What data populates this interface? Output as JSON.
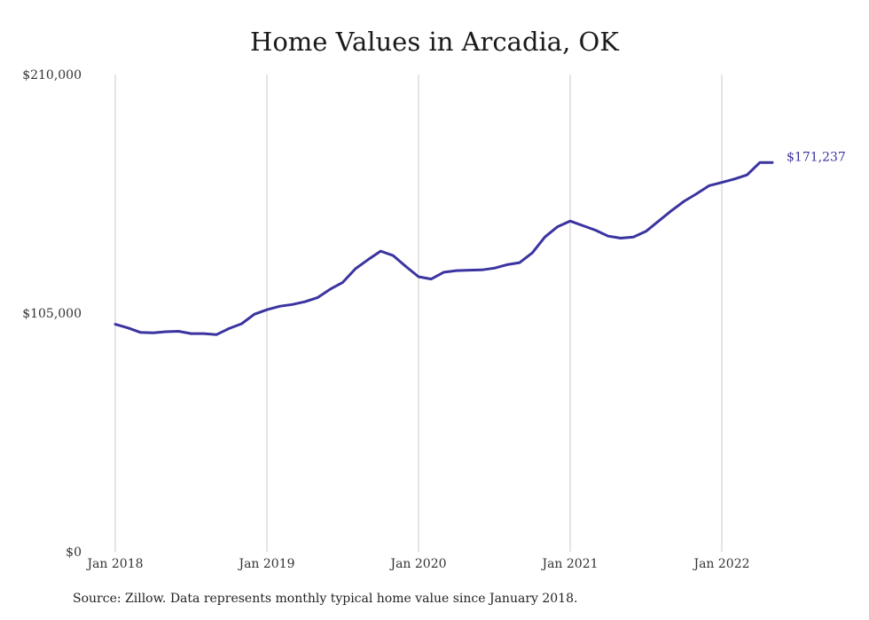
{
  "chart_data": {
    "type": "line",
    "title": "Home Values in Arcadia, OK",
    "xlabel": "",
    "ylabel": "",
    "ylim": [
      0,
      210000
    ],
    "yticks": [
      0,
      105000,
      210000
    ],
    "ytick_labels": [
      "$0",
      "$105,000",
      "$210,000"
    ],
    "xticks": [
      "Jan 2018",
      "Jan 2019",
      "Jan 2020",
      "Jan 2021",
      "Jan 2022"
    ],
    "grid": "vertical",
    "line_color": "#3b34a0",
    "end_label": "$171,237",
    "x": [
      "2018-01",
      "2018-02",
      "2018-03",
      "2018-04",
      "2018-05",
      "2018-06",
      "2018-07",
      "2018-08",
      "2018-09",
      "2018-10",
      "2018-11",
      "2018-12",
      "2019-01",
      "2019-02",
      "2019-03",
      "2019-04",
      "2019-05",
      "2019-06",
      "2019-07",
      "2019-08",
      "2019-09",
      "2019-10",
      "2019-11",
      "2019-12",
      "2020-01",
      "2020-02",
      "2020-03",
      "2020-04",
      "2020-05",
      "2020-06",
      "2020-07",
      "2020-08",
      "2020-09",
      "2020-10",
      "2020-11",
      "2020-12",
      "2021-01",
      "2021-02",
      "2021-03",
      "2021-04",
      "2021-05",
      "2021-06",
      "2021-07",
      "2021-08",
      "2021-09",
      "2021-10",
      "2021-11",
      "2021-12",
      "2022-01",
      "2022-02",
      "2022-03",
      "2022-04",
      "2022-05"
    ],
    "series": [
      {
        "values": [
          100100,
          98500,
          96500,
          96300,
          96800,
          97000,
          96000,
          96000,
          95500,
          98200,
          100300,
          104500,
          106500,
          108000,
          108800,
          110000,
          111800,
          115500,
          118500,
          124500,
          128500,
          132300,
          130300,
          125500,
          121000,
          120000,
          123000,
          123700,
          123900,
          124000,
          124800,
          126300,
          127200,
          131500,
          138500,
          143000,
          145500,
          143500,
          141500,
          138900,
          138000,
          138500,
          141000,
          145500,
          150000,
          154200,
          157500,
          161100,
          162500,
          164000,
          165800,
          171237,
          171237
        ]
      }
    ]
  },
  "source_note": "Source: Zillow. Data represents monthly typical home value since January 2018."
}
